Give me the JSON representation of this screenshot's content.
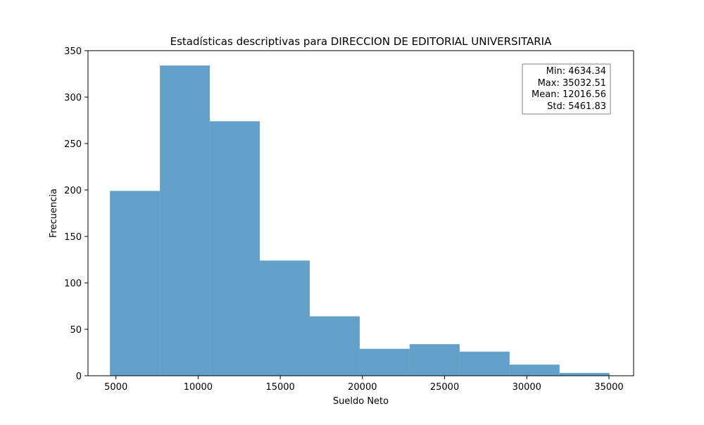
{
  "chart_data": {
    "type": "bar",
    "title": "Estadísticas descriptivas para DIRECCION DE EDITORIAL UNIVERSITARIA",
    "xlabel": "Sueldo Neto",
    "ylabel": "Frecuencia",
    "xlim": [
      3300,
      36500
    ],
    "ylim": [
      0,
      350
    ],
    "xticks": [
      5000,
      10000,
      15000,
      20000,
      25000,
      30000,
      35000
    ],
    "yticks": [
      0,
      50,
      100,
      150,
      200,
      250,
      300,
      350
    ],
    "bin_edges": [
      4634.34,
      7674.16,
      10713.98,
      13753.8,
      16793.61,
      19833.43,
      22873.25,
      25913.06,
      28952.88,
      31992.69,
      35032.51
    ],
    "values": [
      199,
      334,
      274,
      124,
      64,
      29,
      34,
      26,
      12,
      3
    ],
    "bar_color": "#1f77b4",
    "bar_opacity": 0.7,
    "grid": false,
    "stats_box": {
      "position": "top-right",
      "lines": [
        "Min: 4634.34",
        "Max: 35032.51",
        "Mean: 12016.56",
        "Std: 5461.83"
      ]
    }
  }
}
